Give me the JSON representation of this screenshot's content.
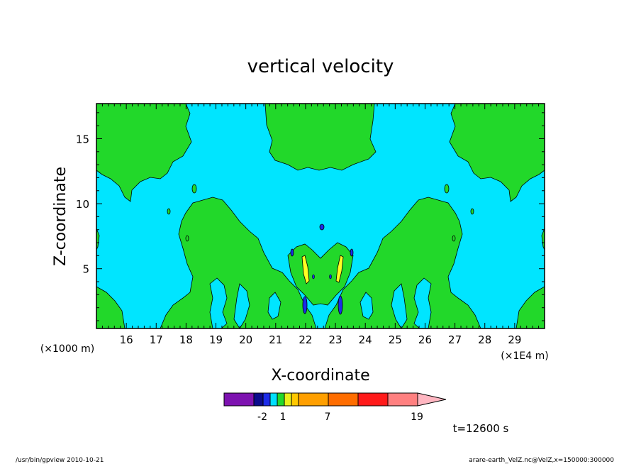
{
  "chart_data": {
    "type": "contour",
    "title": "vertical velocity",
    "xlabel": "X-coordinate",
    "ylabel": "Z-coordinate",
    "x_unit_left": "(×1000 m)",
    "x_unit_right": "(×1E4 m)",
    "x_ticks": [
      "16",
      "17",
      "18",
      "19",
      "20",
      "21",
      "22",
      "23",
      "24",
      "25",
      "26",
      "27",
      "28",
      "29"
    ],
    "x_tick_values": [
      16,
      17,
      18,
      19,
      20,
      21,
      22,
      23,
      24,
      25,
      26,
      27,
      28,
      29
    ],
    "y_ticks": [
      "5",
      "10",
      "15"
    ],
    "y_tick_values": [
      5,
      10,
      15
    ],
    "xlim": [
      15.0,
      30.0
    ],
    "ylim": [
      0.4,
      17.7
    ],
    "colorbar": {
      "colors": [
        "#7d12b0",
        "#0b0b8c",
        "#1c2ce8",
        "#00dfff",
        "#22d82a",
        "#e8f01a",
        "#ffc800",
        "#ff9f00",
        "#ff6d00",
        "#ff1a1a",
        "#ff8080",
        "#ffb6c1"
      ],
      "labels": [
        "-2",
        "1",
        "7",
        "19"
      ]
    },
    "time_label": "t=12600 s",
    "regions": {
      "background": "#00e5ff",
      "positive": "#22d82a",
      "strong_positive": "#ffff22",
      "negative": "#1c2ce8"
    }
  },
  "footer": {
    "left": "/usr/bin/gpview  2010-10-21",
    "right": "arare-earth_VelZ.nc@VelZ,x=150000:300000"
  }
}
